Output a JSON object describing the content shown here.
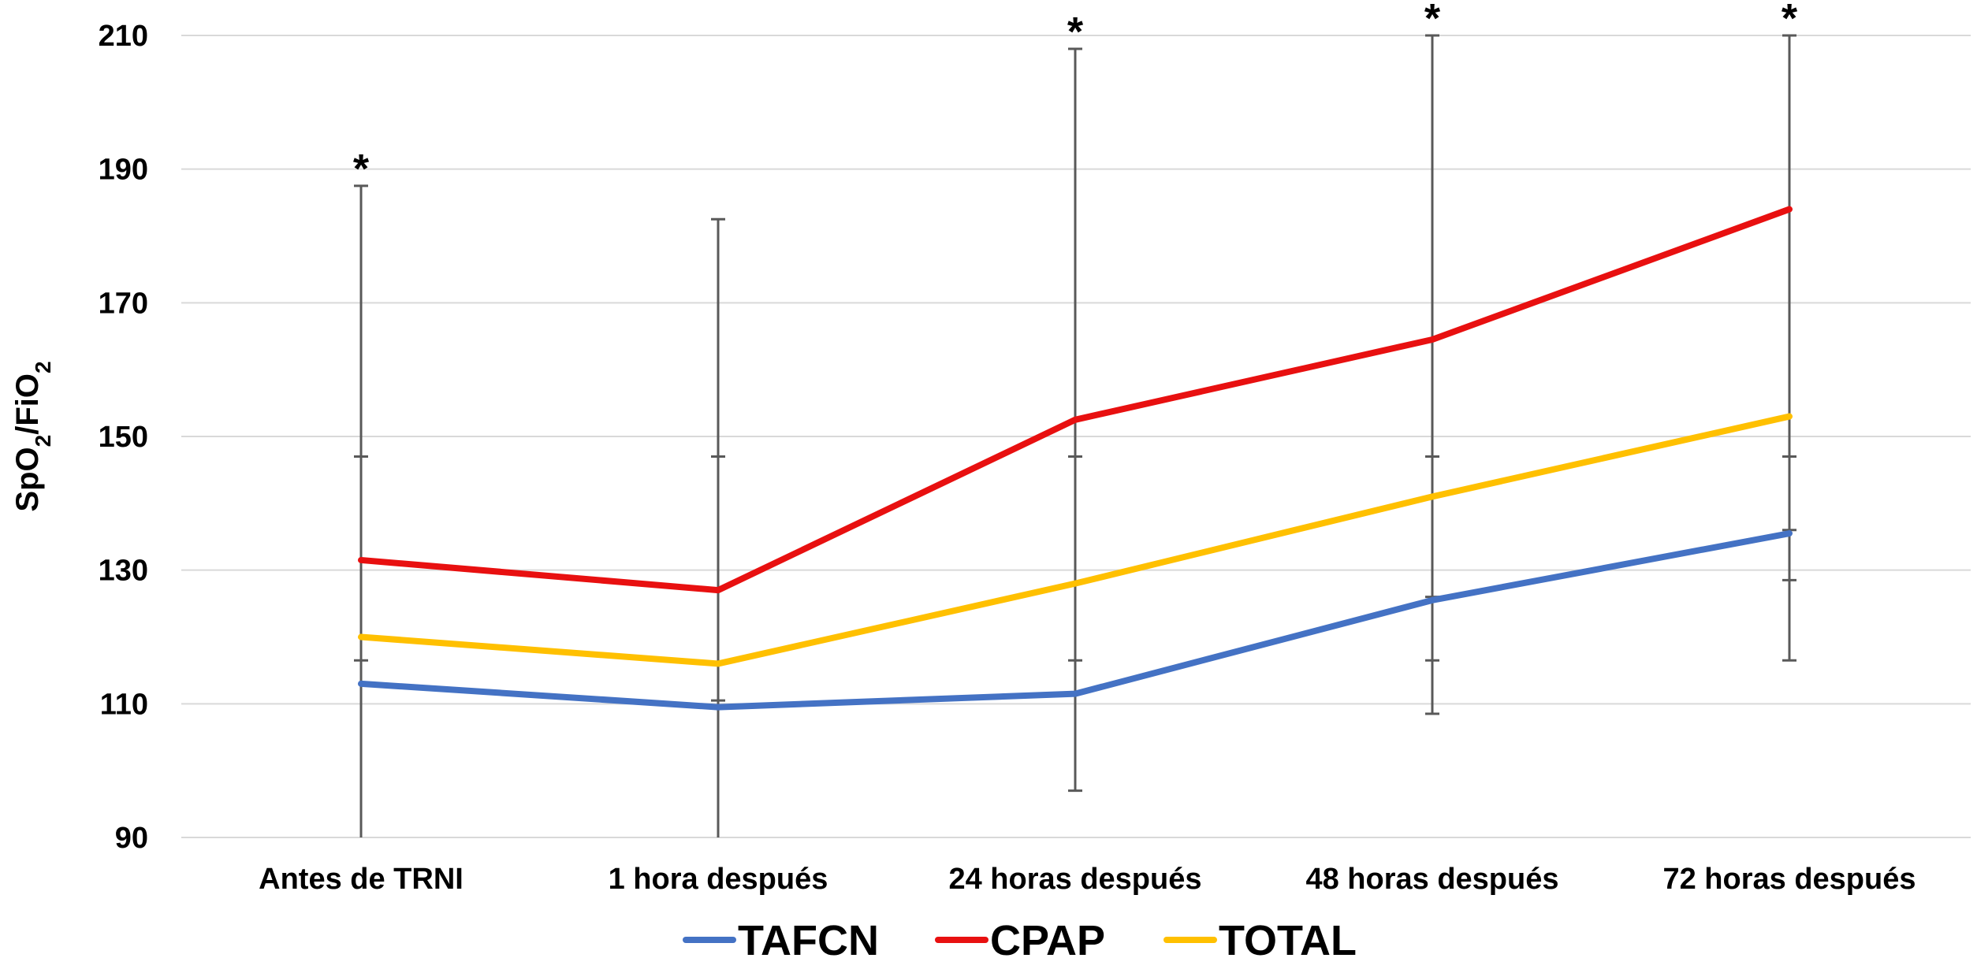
{
  "chart_data": {
    "type": "line",
    "ylabel": {
      "base": "SpO",
      "sub1": "2",
      "mid": "/FiO",
      "sub2": "2"
    },
    "ylim": [
      90,
      210
    ],
    "yticks": [
      90,
      110,
      130,
      150,
      170,
      190,
      210
    ],
    "categories": [
      "Antes de TRNI",
      "1 hora después",
      "24 horas después",
      "48 horas después",
      "72 horas después"
    ],
    "series": [
      {
        "name": "TAFCN",
        "color": "#4472C4",
        "values": [
          113,
          109.5,
          111.5,
          125.5,
          135.5
        ]
      },
      {
        "name": "CPAP",
        "color": "#E81010",
        "values": [
          131.5,
          127,
          152.5,
          164.5,
          184
        ]
      },
      {
        "name": "TOTAL",
        "color": "#FFC000",
        "values": [
          120,
          116,
          128,
          141,
          153
        ]
      }
    ],
    "error_bars": [
      {
        "category": "Antes de TRNI",
        "low": 90,
        "high": 187.5,
        "caps": [
          147,
          116.5
        ]
      },
      {
        "category": "1 hora después",
        "low": 90,
        "high": 182.5,
        "caps": [
          147,
          110.5
        ]
      },
      {
        "category": "24 horas después",
        "low": 97,
        "high": 208,
        "caps": [
          147,
          116.5
        ]
      },
      {
        "category": "48 horas después",
        "low": 108.5,
        "high": 210,
        "caps": [
          147,
          126,
          116.5
        ]
      },
      {
        "category": "72 horas después",
        "low": 116.5,
        "high": 210,
        "caps": [
          147,
          128.5,
          136
        ]
      }
    ],
    "significance": [
      "*",
      "",
      "*",
      "*",
      "*"
    ],
    "grid": true,
    "legend_position": "bottom"
  }
}
